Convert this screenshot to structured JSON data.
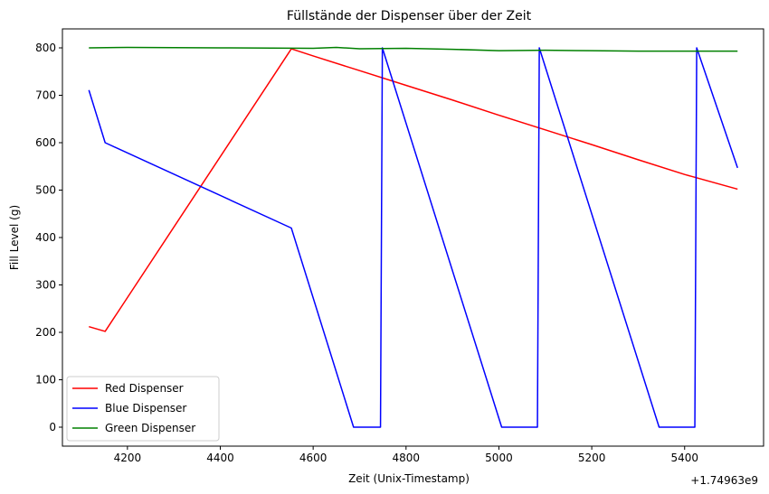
{
  "chart_data": {
    "type": "line",
    "title": "Füllstände der Dispenser über der Zeit",
    "xlabel": "Zeit (Unix-Timestamp)",
    "ylabel": "Fill Level (g)",
    "x_offset_label": "+1.74963e9",
    "xlim": [
      4060,
      5570
    ],
    "ylim": [
      -40,
      840
    ],
    "x_ticks": [
      4200,
      4400,
      4600,
      4800,
      5000,
      5200,
      5400
    ],
    "y_ticks": [
      0,
      100,
      200,
      300,
      400,
      500,
      600,
      700,
      800
    ],
    "grid": false,
    "legend_position": "lower-left",
    "series": [
      {
        "name": "Red Dispenser",
        "color": "#ff0000",
        "x": [
          4117,
          4152,
          4553,
          4600,
          4700,
          4800,
          4900,
          5000,
          5100,
          5200,
          5300,
          5400,
          5514
        ],
        "y": [
          212,
          202,
          798,
          783,
          752,
          721,
          690,
          658,
          627,
          596,
          564,
          533,
          502
        ]
      },
      {
        "name": "Blue Dispenser",
        "color": "#0000ff",
        "x": [
          4117,
          4152,
          4553,
          4687,
          4745,
          4749,
          5006,
          5083,
          5087,
          5345,
          5422,
          5426,
          5514
        ],
        "y": [
          711,
          600,
          420,
          0,
          0,
          800,
          0,
          0,
          800,
          0,
          0,
          800,
          547
        ]
      },
      {
        "name": "Green Dispenser",
        "color": "#008000",
        "x": [
          4117,
          4200,
          4400,
          4600,
          4650,
          4700,
          4800,
          4900,
          5000,
          5100,
          5200,
          5300,
          5400,
          5514
        ],
        "y": [
          800,
          801,
          800,
          799,
          801,
          798,
          799,
          797,
          794,
          795,
          794,
          793,
          793,
          793
        ]
      }
    ]
  }
}
